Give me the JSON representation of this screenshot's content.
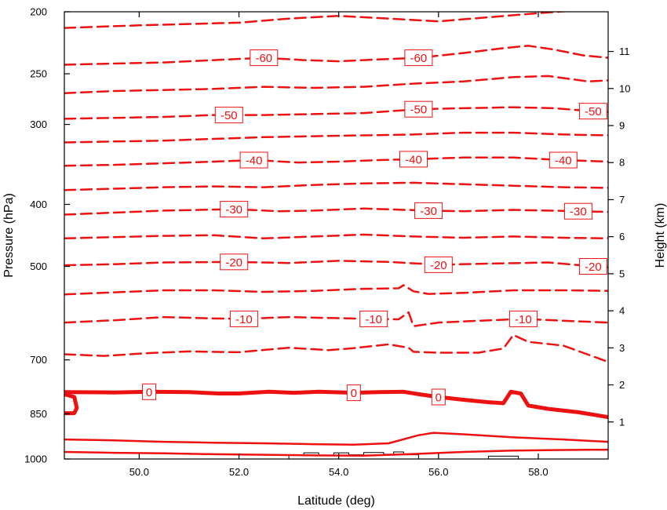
{
  "chart_data": {
    "type": "contour",
    "xlabel": "Latitude (deg)",
    "ylabel_left": "Pressure (hPa)",
    "ylabel_right": "Height (km)",
    "xlim": [
      48.5,
      59.4
    ],
    "x_ticks": [
      50,
      52,
      54,
      56,
      58
    ],
    "x_tick_labels": [
      "50.0",
      "52.0",
      "54.0",
      "56.0",
      "58.0"
    ],
    "y_left_scale": "log",
    "y_left_lim": [
      1000,
      200
    ],
    "y_left_ticks": [
      200,
      250,
      300,
      400,
      500,
      700,
      850,
      1000
    ],
    "y_left_tick_labels": [
      "200",
      "250",
      "300",
      "400",
      "500",
      "700",
      "850",
      "1000"
    ],
    "y_right_ticks": [
      1,
      2,
      3,
      4,
      5,
      6,
      7,
      8,
      9,
      10,
      11
    ],
    "y_right_tick_labels": [
      "1",
      "2",
      "3",
      "4",
      "5",
      "6",
      "7",
      "8",
      "9",
      "10",
      "11"
    ],
    "line_color": "#ee1111",
    "terrain_color": "#000000",
    "contour_levels": [
      -65,
      -60,
      -55,
      -50,
      -45,
      -40,
      -35,
      -30,
      -25,
      -20,
      -15,
      -10,
      -5,
      0,
      5,
      10
    ],
    "labeled_contours": [
      {
        "level": -60,
        "text": "-60",
        "lats": [
          52.5,
          55.6
        ]
      },
      {
        "level": -50,
        "text": "-50",
        "lats": [
          51.8,
          55.6,
          59.1
        ]
      },
      {
        "level": -40,
        "text": "-40",
        "lats": [
          52.3,
          55.5,
          58.5
        ]
      },
      {
        "level": -30,
        "text": "-30",
        "lats": [
          51.9,
          55.8,
          58.8
        ]
      },
      {
        "level": -20,
        "text": "-20",
        "lats": [
          51.9,
          56.0,
          59.1
        ]
      },
      {
        "level": -10,
        "text": "-10",
        "lats": [
          52.1,
          54.7,
          57.7
        ]
      },
      {
        "level": 0,
        "text": "0",
        "lats": [
          50.2,
          54.3,
          56.0
        ]
      }
    ],
    "contours": [
      {
        "level": -65,
        "style": "dashed",
        "points": [
          [
            48.5,
            212
          ],
          [
            50,
            210
          ],
          [
            52,
            208
          ],
          [
            53,
            205
          ],
          [
            54,
            203
          ],
          [
            55,
            205
          ],
          [
            56,
            207
          ],
          [
            57,
            204
          ],
          [
            58,
            201
          ],
          [
            58.8,
            199
          ],
          [
            59.4,
            196
          ]
        ]
      },
      {
        "level": -60,
        "style": "dashed",
        "points": [
          [
            48.5,
            242
          ],
          [
            49.5,
            241
          ],
          [
            50.5,
            240
          ],
          [
            51.5,
            238
          ],
          [
            52.5,
            236
          ],
          [
            53.3,
            238
          ],
          [
            54,
            239
          ],
          [
            54.5,
            238
          ],
          [
            55.6,
            236
          ],
          [
            56.5,
            232
          ],
          [
            57.3,
            228
          ],
          [
            57.8,
            226
          ],
          [
            58.3,
            229
          ],
          [
            58.9,
            234
          ],
          [
            59.4,
            236
          ]
        ]
      },
      {
        "level": -55,
        "style": "dashed",
        "points": [
          [
            48.5,
            268
          ],
          [
            49.5,
            266
          ],
          [
            50.5,
            265
          ],
          [
            51.5,
            264
          ],
          [
            52.5,
            262
          ],
          [
            53.5,
            263
          ],
          [
            54.5,
            262
          ],
          [
            55.5,
            259
          ],
          [
            56.5,
            257
          ],
          [
            57.5,
            253
          ],
          [
            58.2,
            252
          ],
          [
            59,
            257
          ],
          [
            59.4,
            256
          ]
        ]
      },
      {
        "level": -50,
        "style": "dashed",
        "points": [
          [
            48.5,
            294
          ],
          [
            49.5,
            293
          ],
          [
            50.5,
            292
          ],
          [
            51.5,
            290
          ],
          [
            52.5,
            290
          ],
          [
            53.5,
            289
          ],
          [
            54.5,
            288
          ],
          [
            55.6,
            284
          ],
          [
            56.5,
            283
          ],
          [
            57.5,
            282
          ],
          [
            58.3,
            283
          ],
          [
            59.1,
            286
          ],
          [
            59.4,
            287
          ]
        ]
      },
      {
        "level": -45,
        "style": "dashed",
        "points": [
          [
            48.5,
            320
          ],
          [
            49.5,
            319
          ],
          [
            50.5,
            318
          ],
          [
            51.5,
            316
          ],
          [
            52.5,
            314
          ],
          [
            53.5,
            313
          ],
          [
            54.5,
            312
          ],
          [
            55.5,
            311
          ],
          [
            56.5,
            309
          ],
          [
            57.5,
            309
          ],
          [
            58.5,
            311
          ],
          [
            59.4,
            312
          ]
        ]
      },
      {
        "level": -40,
        "style": "dashed",
        "points": [
          [
            48.5,
            348
          ],
          [
            49.5,
            347
          ],
          [
            50.5,
            345
          ],
          [
            51.5,
            343
          ],
          [
            52.3,
            341
          ],
          [
            53.2,
            344
          ],
          [
            54,
            343
          ],
          [
            54.8,
            341
          ],
          [
            55.5,
            340
          ],
          [
            56.5,
            338
          ],
          [
            57.5,
            338
          ],
          [
            58.5,
            341
          ],
          [
            59.4,
            343
          ]
        ]
      },
      {
        "level": -35,
        "style": "dashed",
        "points": [
          [
            48.5,
            380
          ],
          [
            49.5,
            378
          ],
          [
            50.5,
            376
          ],
          [
            51.5,
            375
          ],
          [
            52.5,
            376
          ],
          [
            53.5,
            373
          ],
          [
            54.5,
            371
          ],
          [
            55.5,
            370
          ],
          [
            56.5,
            372
          ],
          [
            57.5,
            374
          ],
          [
            58.5,
            376
          ],
          [
            59.4,
            377
          ]
        ]
      },
      {
        "level": -30,
        "style": "dashed",
        "points": [
          [
            48.5,
            415
          ],
          [
            49.5,
            412
          ],
          [
            50.5,
            409
          ],
          [
            51.9,
            407
          ],
          [
            52.8,
            410
          ],
          [
            53.5,
            409
          ],
          [
            54.5,
            406
          ],
          [
            55.8,
            409
          ],
          [
            56.5,
            410
          ],
          [
            57.5,
            408
          ],
          [
            58.8,
            410
          ],
          [
            59.4,
            411
          ]
        ]
      },
      {
        "level": -25,
        "style": "dashed",
        "points": [
          [
            48.5,
            452
          ],
          [
            49.5,
            450
          ],
          [
            50.5,
            448
          ],
          [
            51.5,
            447
          ],
          [
            52.5,
            452
          ],
          [
            53.5,
            449
          ],
          [
            54.5,
            446
          ],
          [
            55.5,
            449
          ],
          [
            56.5,
            451
          ],
          [
            57.5,
            449
          ],
          [
            58.5,
            451
          ],
          [
            59.4,
            452
          ]
        ]
      },
      {
        "level": -20,
        "style": "dashed",
        "points": [
          [
            48.5,
            498
          ],
          [
            49.5,
            496
          ],
          [
            50.5,
            493
          ],
          [
            51.9,
            492
          ],
          [
            53,
            494
          ],
          [
            54,
            490
          ],
          [
            55,
            492
          ],
          [
            56,
            497
          ],
          [
            57,
            495
          ],
          [
            58.2,
            493
          ],
          [
            59.1,
            500
          ],
          [
            59.4,
            502
          ]
        ]
      },
      {
        "level": -15,
        "style": "dashed",
        "points": [
          [
            48.5,
            553
          ],
          [
            49.5,
            549
          ],
          [
            50.5,
            545
          ],
          [
            51.5,
            545
          ],
          [
            52.5,
            548
          ],
          [
            53.5,
            546
          ],
          [
            54.5,
            542
          ],
          [
            55.2,
            541
          ],
          [
            55.3,
            535
          ],
          [
            55.5,
            547
          ],
          [
            55.8,
            552
          ],
          [
            56.5,
            550
          ],
          [
            57.5,
            545
          ],
          [
            58.5,
            545
          ],
          [
            59.4,
            546
          ]
        ]
      },
      {
        "level": -10,
        "style": "dashed",
        "points": [
          [
            48.5,
            612
          ],
          [
            49.5,
            607
          ],
          [
            50.5,
            600
          ],
          [
            51.5,
            603
          ],
          [
            52.1,
            604
          ],
          [
            53,
            600
          ],
          [
            53.8,
            602
          ],
          [
            54.7,
            604
          ],
          [
            55.2,
            605
          ],
          [
            55.4,
            590
          ],
          [
            55.5,
            620
          ],
          [
            56,
            612
          ],
          [
            56.8,
            608
          ],
          [
            57.7,
            604
          ],
          [
            58.5,
            608
          ],
          [
            59.4,
            612
          ]
        ]
      },
      {
        "level": -5,
        "style": "dashed",
        "points": [
          [
            48.5,
            686
          ],
          [
            49.3,
            690
          ],
          [
            50.2,
            683
          ],
          [
            51,
            679
          ],
          [
            52,
            681
          ],
          [
            53,
            670
          ],
          [
            53.8,
            676
          ],
          [
            54.3,
            671
          ],
          [
            55,
            662
          ],
          [
            55.4,
            670
          ],
          [
            55.5,
            680
          ],
          [
            56,
            682
          ],
          [
            56.8,
            682
          ],
          [
            57.3,
            672
          ],
          [
            57.5,
            640
          ],
          [
            57.8,
            656
          ],
          [
            58.5,
            665
          ],
          [
            59.4,
            705
          ]
        ]
      },
      {
        "level": 0,
        "style": "bold",
        "points": [
          [
            48.5,
            786
          ],
          [
            49.5,
            787
          ],
          [
            50.2,
            785
          ],
          [
            51,
            786
          ],
          [
            51.6,
            790
          ],
          [
            52,
            790
          ],
          [
            52.6,
            785
          ],
          [
            53.1,
            788
          ],
          [
            53.6,
            785
          ],
          [
            54.3,
            788
          ],
          [
            54.8,
            786
          ],
          [
            55.3,
            785
          ],
          [
            55.6,
            792
          ],
          [
            56,
            800
          ],
          [
            56.5,
            808
          ],
          [
            57,
            815
          ],
          [
            57.3,
            818
          ],
          [
            57.45,
            785
          ],
          [
            57.65,
            790
          ],
          [
            57.8,
            825
          ],
          [
            58.2,
            835
          ],
          [
            58.8,
            845
          ],
          [
            59.4,
            860
          ]
        ]
      },
      {
        "level": 0,
        "style": "bold",
        "points": [
          [
            48.5,
            792
          ],
          [
            48.7,
            800
          ],
          [
            48.75,
            832
          ],
          [
            48.7,
            848
          ],
          [
            48.5,
            848
          ]
        ]
      },
      {
        "level": 5,
        "style": "solid",
        "points": [
          [
            48.5,
            932
          ],
          [
            49.5,
            935
          ],
          [
            50.5,
            940
          ],
          [
            51.5,
            943
          ],
          [
            52.5,
            945
          ],
          [
            53.5,
            948
          ],
          [
            54.3,
            950
          ],
          [
            55,
            945
          ],
          [
            55.6,
            918
          ],
          [
            55.9,
            910
          ],
          [
            56.5,
            915
          ],
          [
            57.5,
            925
          ],
          [
            58.5,
            932
          ],
          [
            59.4,
            940
          ]
        ]
      },
      {
        "level": 10,
        "style": "solid",
        "points": [
          [
            48.5,
            975
          ],
          [
            49.5,
            978
          ],
          [
            50.5,
            980
          ],
          [
            51.5,
            983
          ],
          [
            52.5,
            985
          ],
          [
            53.5,
            987
          ],
          [
            54.5,
            988
          ],
          [
            55.5,
            982
          ],
          [
            56.5,
            975
          ],
          [
            57.5,
            970
          ],
          [
            58.5,
            968
          ],
          [
            59.4,
            967
          ]
        ]
      }
    ],
    "terrain": [
      [
        53.0,
        1000
      ],
      [
        53.0,
        985
      ],
      [
        53.3,
        985
      ],
      [
        53.3,
        978
      ],
      [
        53.6,
        978
      ],
      [
        53.6,
        986
      ],
      [
        53.9,
        986
      ],
      [
        53.9,
        978
      ],
      [
        54.2,
        978
      ],
      [
        54.2,
        985
      ],
      [
        54.5,
        985
      ],
      [
        54.5,
        977
      ],
      [
        54.9,
        977
      ],
      [
        54.9,
        983
      ],
      [
        55.1,
        983
      ],
      [
        55.1,
        975
      ],
      [
        55.3,
        975
      ],
      [
        55.3,
        985
      ],
      [
        55.6,
        985
      ],
      [
        55.6,
        1000
      ],
      [
        57.0,
        1000
      ],
      [
        57.0,
        990
      ],
      [
        57.6,
        990
      ],
      [
        57.6,
        1000
      ]
    ]
  }
}
